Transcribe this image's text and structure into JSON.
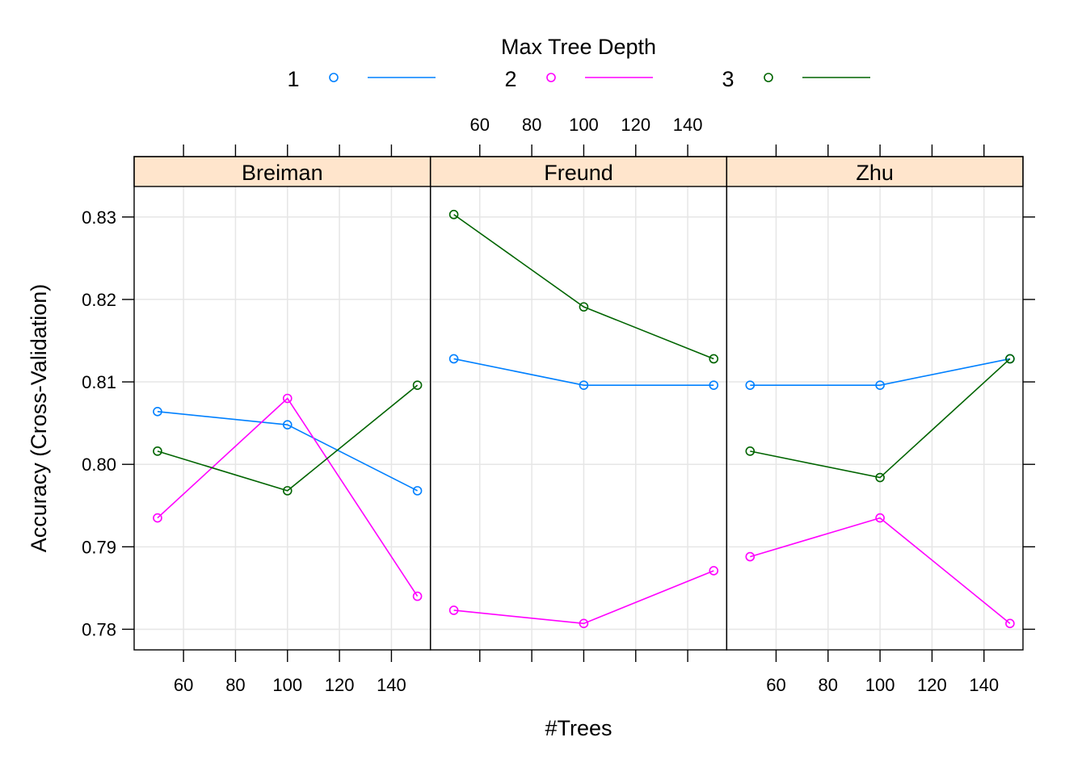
{
  "chart_data": {
    "type": "line",
    "xlabel": "#Trees",
    "ylabel": "Accuracy (Cross-Validation)",
    "xlim": [
      41,
      155
    ],
    "ylim": [
      0.7775,
      0.8337
    ],
    "x_ticks": [
      60,
      80,
      100,
      120,
      140
    ],
    "y_ticks": [
      0.78,
      0.79,
      0.8,
      0.81,
      0.82,
      0.83
    ],
    "grid": true,
    "legend": {
      "title": "Max Tree Depth",
      "position": "top",
      "entries": [
        {
          "label": "1",
          "color": "#0080ff"
        },
        {
          "label": "2",
          "color": "#ff00ff"
        },
        {
          "label": "3",
          "color": "#006400"
        }
      ]
    },
    "strip_color": "#ffe5cc",
    "panels": [
      {
        "name": "Breiman",
        "series": [
          {
            "name": "1",
            "x": [
              50,
              100,
              150
            ],
            "values": [
              0.8064,
              0.8048,
              0.7968
            ]
          },
          {
            "name": "2",
            "x": [
              50,
              100,
              150
            ],
            "values": [
              0.7935,
              0.808,
              0.784
            ]
          },
          {
            "name": "3",
            "x": [
              50,
              100,
              150
            ],
            "values": [
              0.8016,
              0.7968,
              0.8096
            ]
          }
        ]
      },
      {
        "name": "Freund",
        "series": [
          {
            "name": "1",
            "x": [
              50,
              100,
              150
            ],
            "values": [
              0.8128,
              0.8096,
              0.8096
            ]
          },
          {
            "name": "2",
            "x": [
              50,
              100,
              150
            ],
            "values": [
              0.7823,
              0.7807,
              0.7871
            ]
          },
          {
            "name": "3",
            "x": [
              50,
              100,
              150
            ],
            "values": [
              0.8303,
              0.8191,
              0.8128
            ]
          }
        ]
      },
      {
        "name": "Zhu",
        "series": [
          {
            "name": "1",
            "x": [
              50,
              100,
              150
            ],
            "values": [
              0.8096,
              0.8096,
              0.8128
            ]
          },
          {
            "name": "2",
            "x": [
              50,
              100,
              150
            ],
            "values": [
              0.7888,
              0.7935,
              0.7807
            ]
          },
          {
            "name": "3",
            "x": [
              50,
              100,
              150
            ],
            "values": [
              0.8016,
              0.7984,
              0.8128
            ]
          }
        ]
      }
    ]
  }
}
